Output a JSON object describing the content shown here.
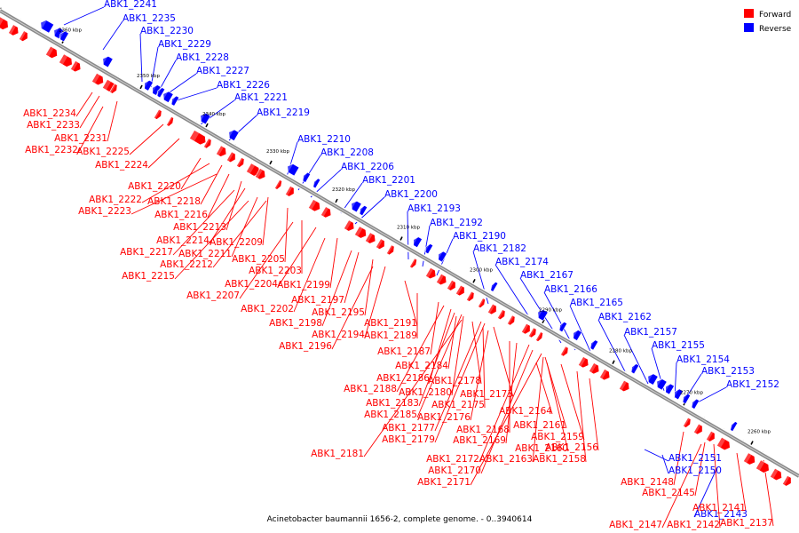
{
  "caption": "Acinetobacter baumannii 1656-2, complete genome. - 0..3940614",
  "legend": [
    {
      "label": "Forward",
      "color": "#ff0000"
    },
    {
      "label": "Reverse",
      "color": "#0000ff"
    }
  ],
  "colors": {
    "forward": "#ff0000",
    "reverse": "#0000ff",
    "backbone": "#808080"
  },
  "scale_labels": [
    "2360 kbp",
    "2350 kbp",
    "2340 kbp",
    "2330 kbp",
    "2320 kbp",
    "2310 kbp",
    "2300 kbp",
    "2290 kbp",
    "2280 kbp",
    "2270 kbp",
    "2260 kbp"
  ],
  "genes_reverse": [
    "ABK1_2241",
    "ABK1_2235",
    "ABK1_2230",
    "ABK1_2229",
    "ABK1_2228",
    "ABK1_2227",
    "ABK1_2226",
    "ABK1_2221",
    "ABK1_2219",
    "ABK1_2210",
    "ABK1_2208",
    "ABK1_2206",
    "ABK1_2201",
    "ABK1_2200",
    "ABK1_2193",
    "ABK1_2192",
    "ABK1_2190",
    "ABK1_2182",
    "ABK1_2174",
    "ABK1_2167",
    "ABK1_2166",
    "ABK1_2165",
    "ABK1_2162",
    "ABK1_2157",
    "ABK1_2155",
    "ABK1_2154",
    "ABK1_2153",
    "ABK1_2152",
    "ABK1_2151",
    "ABK1_2150",
    "ABK1_2143"
  ],
  "genes_forward": [
    "ABK1_2234",
    "ABK1_2233",
    "ABK1_2231",
    "ABK1_2232",
    "ABK1_2225",
    "ABK1_2224",
    "ABK1_2220",
    "ABK1_2222",
    "ABK1_2218",
    "ABK1_2223",
    "ABK1_2216",
    "ABK1_2213",
    "ABK1_2214",
    "ABK1_2209",
    "ABK1_2217",
    "ABK1_2211",
    "ABK1_2212",
    "ABK1_2205",
    "ABK1_2203",
    "ABK1_2215",
    "ABK1_2204",
    "ABK1_2199",
    "ABK1_2207",
    "ABK1_2197",
    "ABK1_2202",
    "ABK1_2195",
    "ABK1_2198",
    "ABK1_2191",
    "ABK1_2194",
    "ABK1_2189",
    "ABK1_2196",
    "ABK1_2187",
    "ABK1_2184",
    "ABK1_2186",
    "ABK1_2178",
    "ABK1_2188",
    "ABK1_2180",
    "ABK1_2173",
    "ABK1_2183",
    "ABK1_2175",
    "ABK1_2185",
    "ABK1_2176",
    "ABK1_2164",
    "ABK1_2177",
    "ABK1_2168",
    "ABK1_2161",
    "ABK1_2179",
    "ABK1_2169",
    "ABK1_2159",
    "ABK1_2181",
    "ABK1_2160",
    "ABK1_2156",
    "ABK1_2172",
    "ABK1_2163",
    "ABK1_2158",
    "ABK1_2170",
    "ABK1_2171",
    "ABK1_2148",
    "ABK1_2145",
    "ABK1_2141",
    "ABK1_2147",
    "ABK1_2142",
    "ABK1_2137"
  ]
}
